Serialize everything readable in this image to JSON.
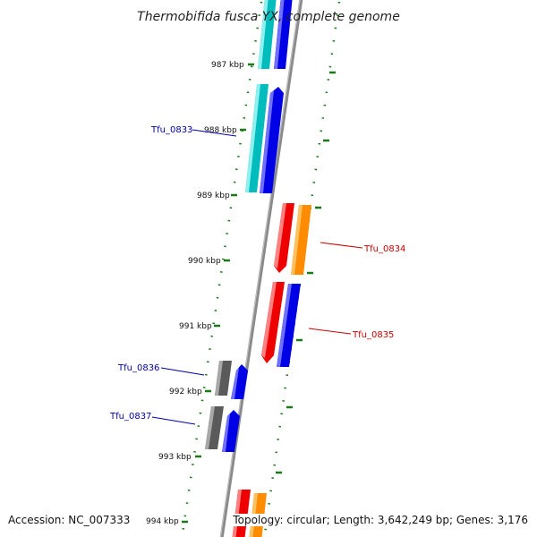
{
  "title": "Thermobifida fusca YX, complete genome",
  "footer": {
    "accession": "Accession: NC_007333",
    "topology": "Topology: circular; Length: 3,642,249 bp; Genes: 3,176"
  },
  "ticks": [
    "987 kbp",
    "988 kbp",
    "989 kbp",
    "990 kbp",
    "991 kbp",
    "992 kbp",
    "993 kbp",
    "994 kbp"
  ],
  "gene_labels": {
    "tfu0833": {
      "text": "Tfu_0833",
      "color": "#0000aa"
    },
    "tfu0834": {
      "text": "Tfu_0834",
      "color": "#cc0000"
    },
    "tfu0835": {
      "text": "Tfu_0835",
      "color": "#cc0000"
    },
    "tfu0836": {
      "text": "Tfu_0836",
      "color": "#0000aa"
    },
    "tfu0837": {
      "text": "Tfu_0837",
      "color": "#0000aa"
    }
  },
  "colors": {
    "backbone": "#888888",
    "tick": "#1a7a1a",
    "cyan": "#00c0c0",
    "blue": "#0000ee",
    "red": "#ee0000",
    "orange": "#ff8c00",
    "gray": "#606060"
  }
}
